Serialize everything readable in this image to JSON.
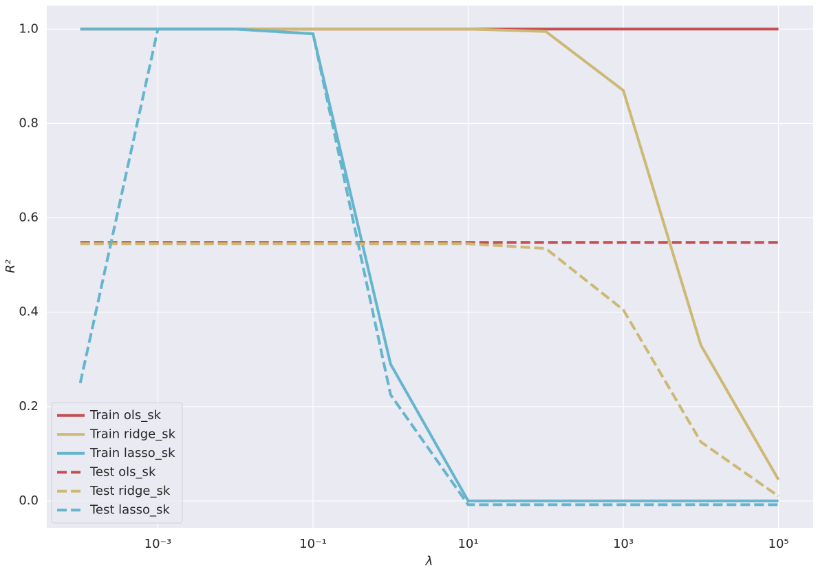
{
  "chart_data": {
    "type": "line",
    "x": [
      0.0001,
      0.001,
      0.01,
      0.1,
      1,
      10,
      100,
      1000,
      10000,
      100000
    ],
    "xlabel": "λ",
    "ylabel": "R²",
    "xscale": "log",
    "xlim": [
      3.7e-05,
      280000
    ],
    "ylim": [
      -0.057,
      1.05
    ],
    "xticks": [
      {
        "value": 0.001,
        "label": "10⁻³"
      },
      {
        "value": 0.1,
        "label": "10⁻¹"
      },
      {
        "value": 10,
        "label": "10¹"
      },
      {
        "value": 1000,
        "label": "10³"
      },
      {
        "value": 100000,
        "label": "10⁵"
      }
    ],
    "yticks": [
      {
        "value": 0,
        "label": "0.0"
      },
      0.2,
      0.4,
      0.6,
      0.8,
      {
        "value": 1,
        "label": "1.0"
      }
    ],
    "grid": true,
    "legend": "lower left",
    "series": [
      {
        "name": "Train ols_sk",
        "color": "#c44e52",
        "linestyle": "solid",
        "values": [
          1,
          1,
          1,
          1,
          1,
          1,
          1,
          1,
          1,
          1
        ]
      },
      {
        "name": "Train ridge_sk",
        "color": "#ccb974",
        "linestyle": "solid",
        "values": [
          1,
          1,
          1,
          1,
          1,
          1,
          0.995,
          0.87,
          0.33,
          0.045
        ]
      },
      {
        "name": "Train lasso_sk",
        "color": "#64b5cd",
        "linestyle": "solid",
        "values": [
          1,
          1,
          1,
          0.99,
          0.29,
          0,
          0,
          0,
          0,
          0
        ]
      },
      {
        "name": "Test ols_sk",
        "color": "#c44e52",
        "linestyle": "dashed",
        "values": [
          0.548,
          0.548,
          0.548,
          0.548,
          0.548,
          0.548,
          0.548,
          0.548,
          0.548,
          0.548
        ]
      },
      {
        "name": "Test ridge_sk",
        "color": "#ccb974",
        "linestyle": "dashed",
        "values": [
          0.545,
          0.545,
          0.545,
          0.545,
          0.545,
          0.545,
          0.535,
          0.405,
          0.125,
          0.01
        ]
      },
      {
        "name": "Test lasso_sk",
        "color": "#64b5cd",
        "linestyle": "dashed",
        "values": [
          0.25,
          1,
          1,
          0.99,
          0.225,
          -0.008,
          -0.008,
          -0.008,
          -0.008,
          -0.008
        ]
      }
    ]
  }
}
